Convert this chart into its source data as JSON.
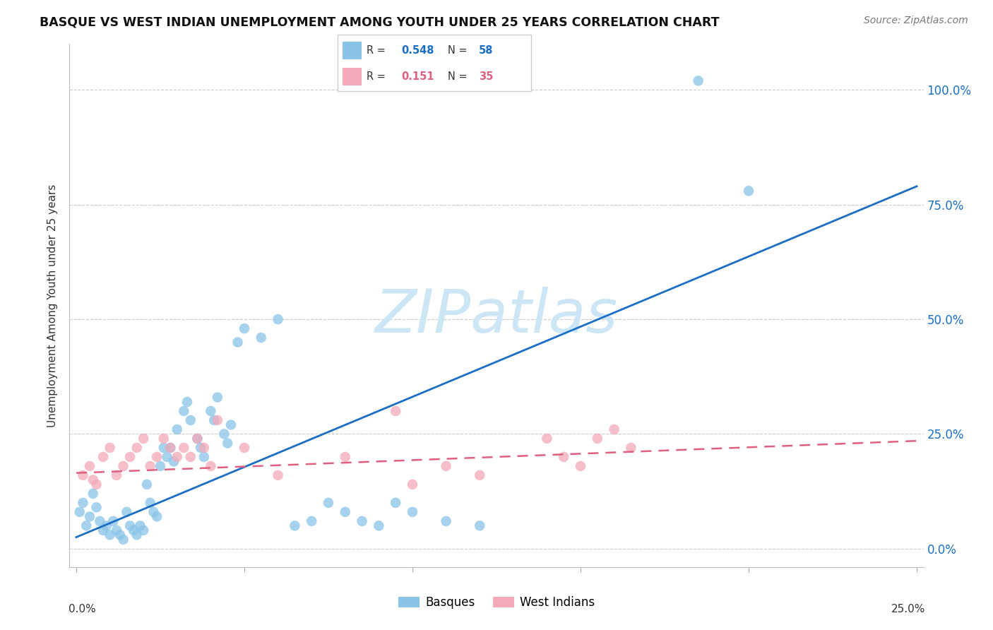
{
  "title": "BASQUE VS WEST INDIAN UNEMPLOYMENT AMONG YOUTH UNDER 25 YEARS CORRELATION CHART",
  "source": "Source: ZipAtlas.com",
  "ylabel": "Unemployment Among Youth under 25 years",
  "blue_color": "#89c4e8",
  "blue_line_color": "#1a6fc4",
  "pink_color": "#f4a8b8",
  "pink_line_color": "#e06080",
  "watermark_color": "#cce6f5",
  "basque_R": "0.548",
  "basque_N": "58",
  "westindian_R": "0.151",
  "westindian_N": "35",
  "blue_text_color": "#1a6fc4",
  "pink_text_color": "#e06080",
  "basque_x": [
    0.001,
    0.002,
    0.003,
    0.004,
    0.005,
    0.006,
    0.007,
    0.008,
    0.009,
    0.01,
    0.011,
    0.012,
    0.013,
    0.014,
    0.015,
    0.016,
    0.017,
    0.018,
    0.019,
    0.02,
    0.021,
    0.022,
    0.023,
    0.024,
    0.025,
    0.026,
    0.027,
    0.028,
    0.029,
    0.03,
    0.032,
    0.033,
    0.034,
    0.036,
    0.037,
    0.038,
    0.04,
    0.041,
    0.042,
    0.044,
    0.045,
    0.046,
    0.048,
    0.05,
    0.055,
    0.06,
    0.065,
    0.07,
    0.075,
    0.08,
    0.085,
    0.09,
    0.095,
    0.1,
    0.11,
    0.12,
    0.185,
    0.2
  ],
  "basque_y": [
    0.08,
    0.1,
    0.05,
    0.07,
    0.12,
    0.09,
    0.06,
    0.04,
    0.05,
    0.03,
    0.06,
    0.04,
    0.03,
    0.02,
    0.08,
    0.05,
    0.04,
    0.03,
    0.05,
    0.04,
    0.14,
    0.1,
    0.08,
    0.07,
    0.18,
    0.22,
    0.2,
    0.22,
    0.19,
    0.26,
    0.3,
    0.32,
    0.28,
    0.24,
    0.22,
    0.2,
    0.3,
    0.28,
    0.33,
    0.25,
    0.23,
    0.27,
    0.45,
    0.48,
    0.46,
    0.5,
    0.05,
    0.06,
    0.1,
    0.08,
    0.06,
    0.05,
    0.1,
    0.08,
    0.06,
    0.05,
    1.02,
    0.78
  ],
  "westindian_x": [
    0.002,
    0.004,
    0.005,
    0.006,
    0.008,
    0.01,
    0.012,
    0.014,
    0.016,
    0.018,
    0.02,
    0.022,
    0.024,
    0.026,
    0.028,
    0.03,
    0.032,
    0.034,
    0.036,
    0.038,
    0.04,
    0.042,
    0.05,
    0.06,
    0.08,
    0.095,
    0.1,
    0.11,
    0.12,
    0.14,
    0.145,
    0.15,
    0.155,
    0.16,
    0.165
  ],
  "westindian_y": [
    0.16,
    0.18,
    0.15,
    0.14,
    0.2,
    0.22,
    0.16,
    0.18,
    0.2,
    0.22,
    0.24,
    0.18,
    0.2,
    0.24,
    0.22,
    0.2,
    0.22,
    0.2,
    0.24,
    0.22,
    0.18,
    0.28,
    0.22,
    0.16,
    0.2,
    0.3,
    0.14,
    0.18,
    0.16,
    0.24,
    0.2,
    0.18,
    0.24,
    0.26,
    0.22
  ],
  "blue_line_x": [
    0.0,
    0.25
  ],
  "blue_line_y": [
    0.025,
    0.79
  ],
  "pink_line_x": [
    0.0,
    0.25
  ],
  "pink_line_y": [
    0.165,
    0.235
  ],
  "xlim": [
    -0.002,
    0.252
  ],
  "ylim": [
    -0.04,
    1.1
  ]
}
